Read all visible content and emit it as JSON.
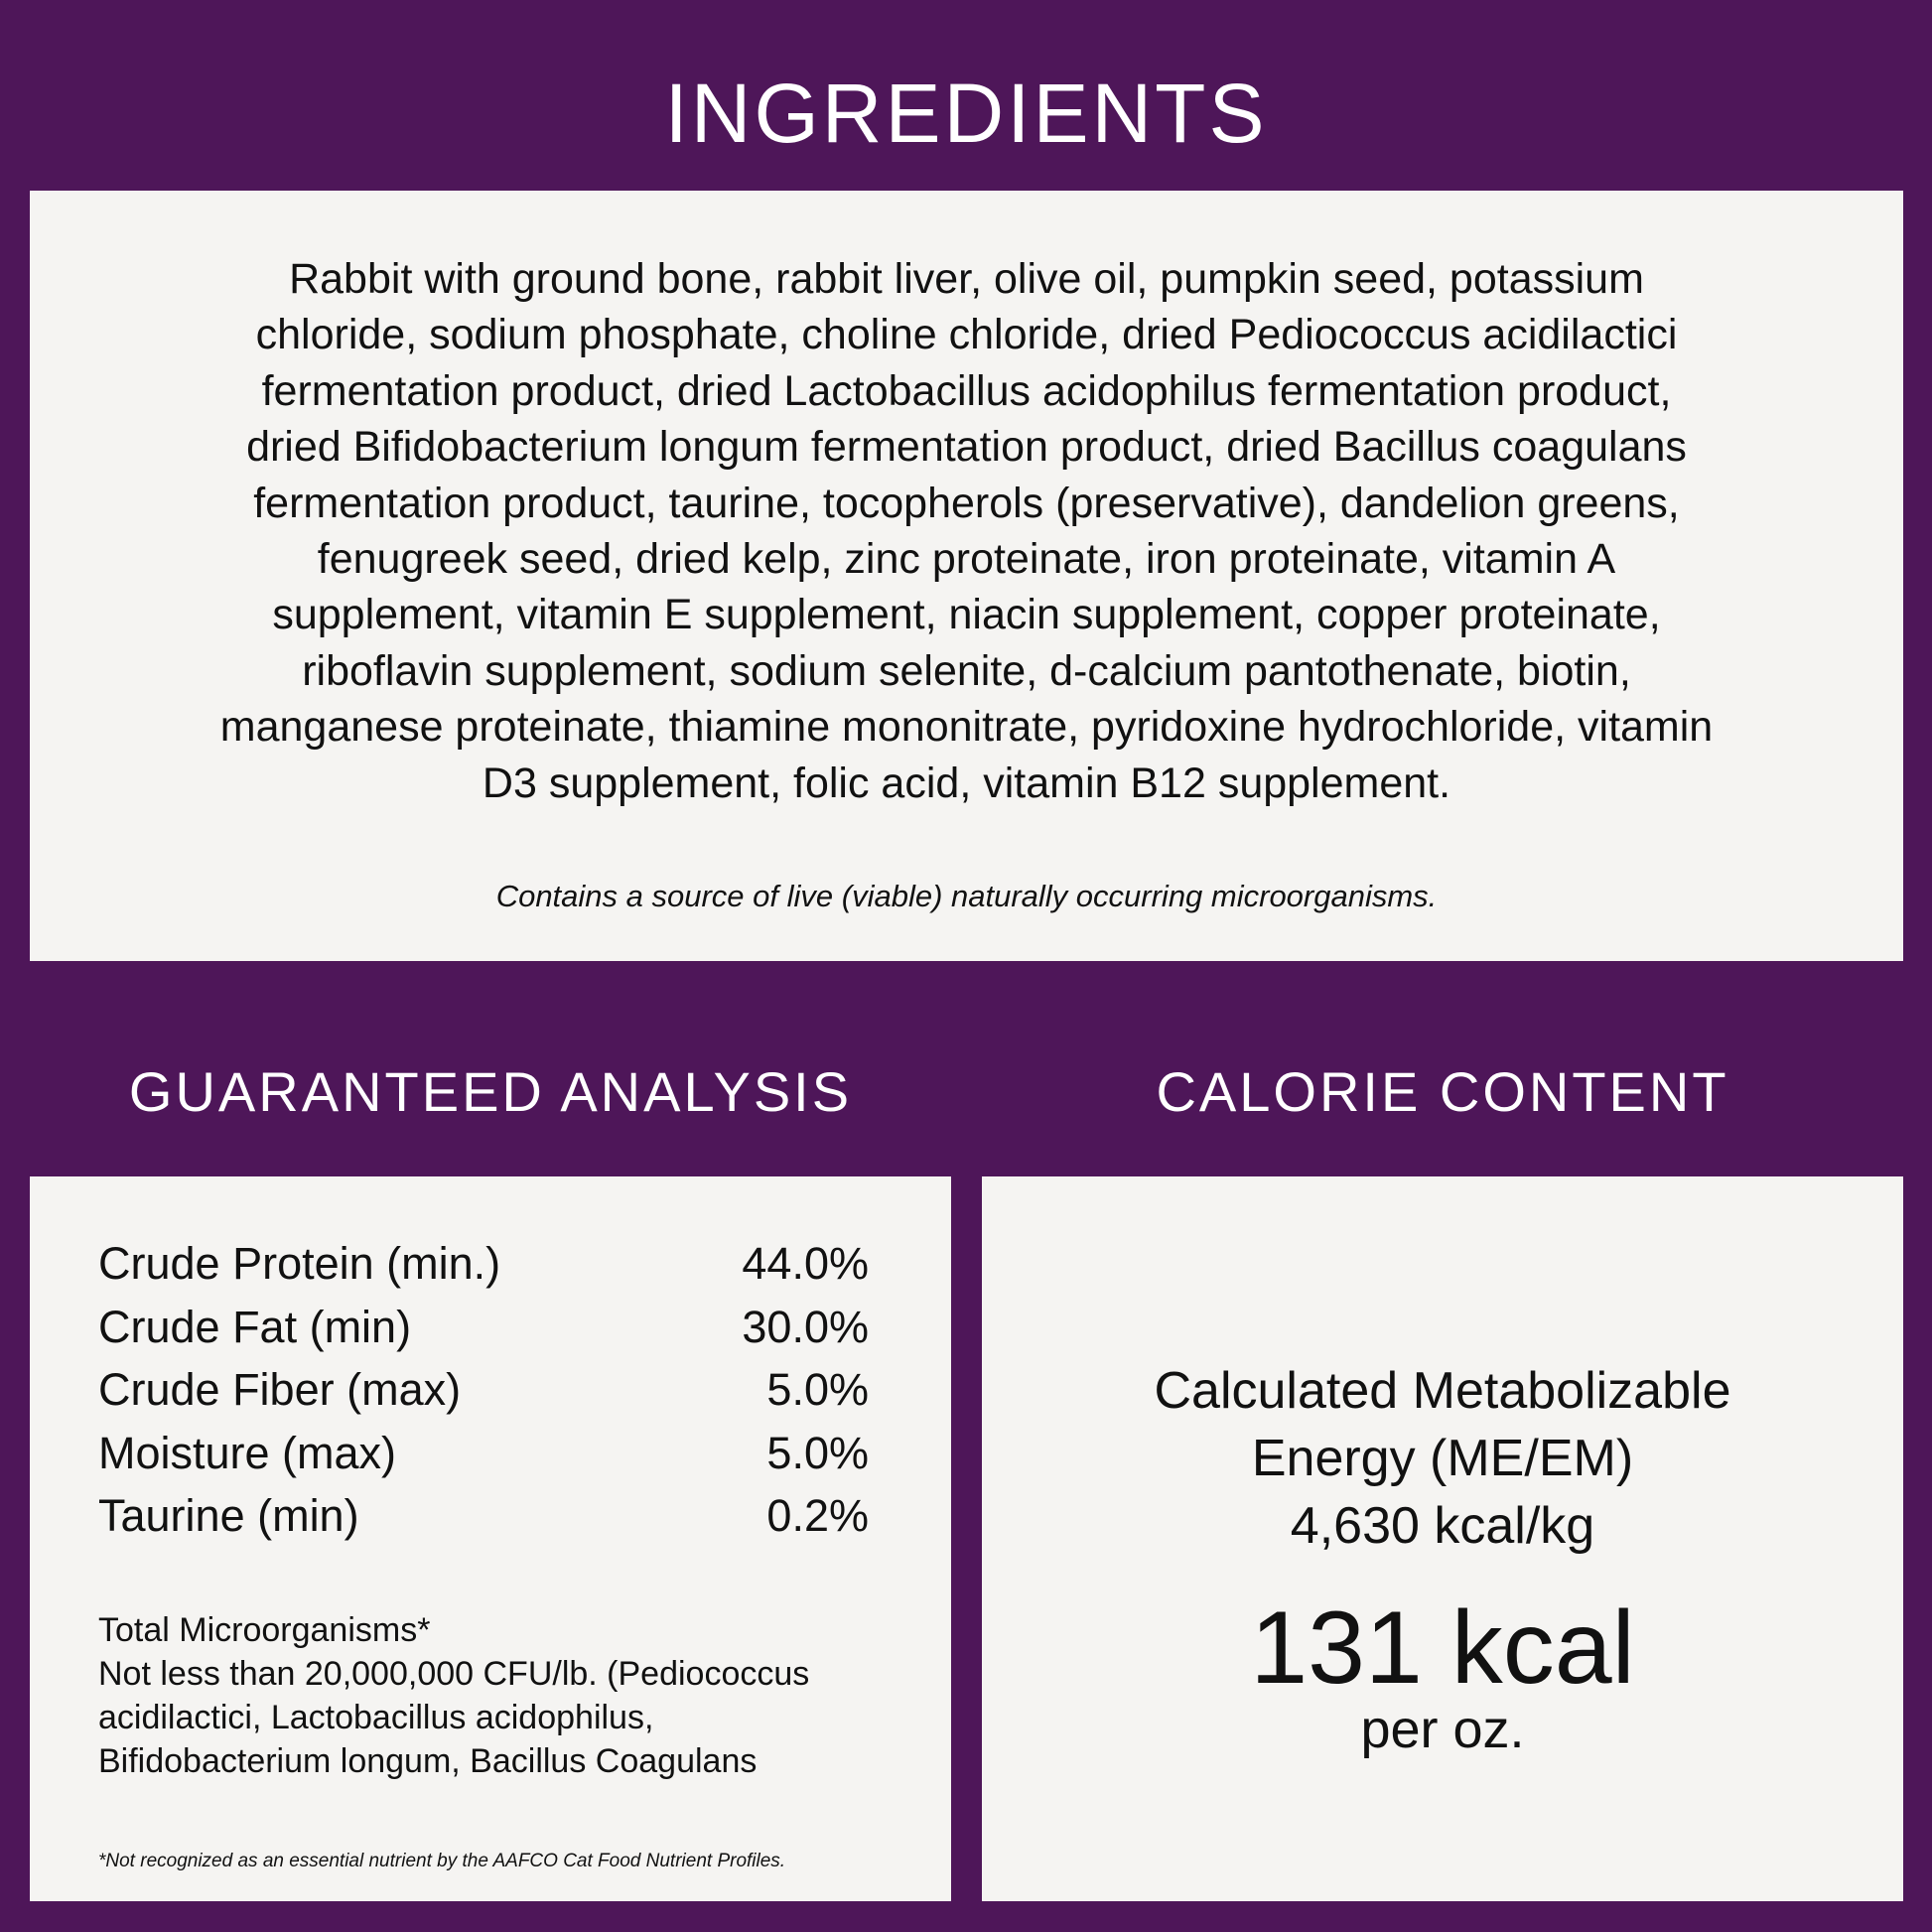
{
  "colors": {
    "background": "#4e1659",
    "panel": "#f5f4f2",
    "heading": "#ffffff"
  },
  "ingredients": {
    "title": "INGREDIENTS",
    "lines": [
      "Rabbit with ground bone, rabbit liver, olive oil, pumpkin seed, potassium",
      "chloride, sodium phosphate, choline chloride, dried Pediococcus acidilactici",
      "fermentation product, dried Lactobacillus acidophilus fermentation product,",
      "dried Bifidobacterium longum fermentation product, dried Bacillus coagulans",
      "fermentation product, taurine, tocopherols (preservative), dandelion greens,",
      "fenugreek seed, dried kelp, zinc proteinate, iron proteinate, vitamin A",
      "supplement, vitamin E supplement, niacin supplement, copper proteinate,",
      "riboflavin supplement, sodium selenite, d-calcium pantothenate, biotin,",
      "manganese proteinate, thiamine mononitrate, pyridoxine hydrochloride, vitamin",
      "D3 supplement, folic acid, vitamin B12 supplement."
    ],
    "note": "Contains a source of live (viable) naturally occurring microorganisms."
  },
  "guaranteed_analysis": {
    "title": "GUARANTEED ANALYSIS",
    "rows": [
      {
        "label": "Crude Protein (min.)",
        "value": "44.0%"
      },
      {
        "label": "Crude Fat (min)",
        "value": "30.0%"
      },
      {
        "label": "Crude Fiber (max)",
        "value": "5.0%"
      },
      {
        "label": "Moisture (max)",
        "value": "5.0%"
      },
      {
        "label": "Taurine (min)",
        "value": "0.2%"
      }
    ],
    "micro_lines": [
      "Total Microorganisms*",
      "Not less than 20,000,000 CFU/lb. (Pediococcus",
      "acidilactici, Lactobacillus acidophilus,",
      "Bifidobacterium longum, Bacillus Coagulans"
    ],
    "footnote": "*Not recognized as an essential nutrient by the AAFCO Cat Food Nutrient Profiles."
  },
  "calorie_content": {
    "title": "CALORIE CONTENT",
    "lines": [
      "Calculated Metabolizable",
      "Energy (ME/EM)",
      "4,630 kcal/kg"
    ],
    "big": "131 kcal",
    "unit": "per oz."
  }
}
